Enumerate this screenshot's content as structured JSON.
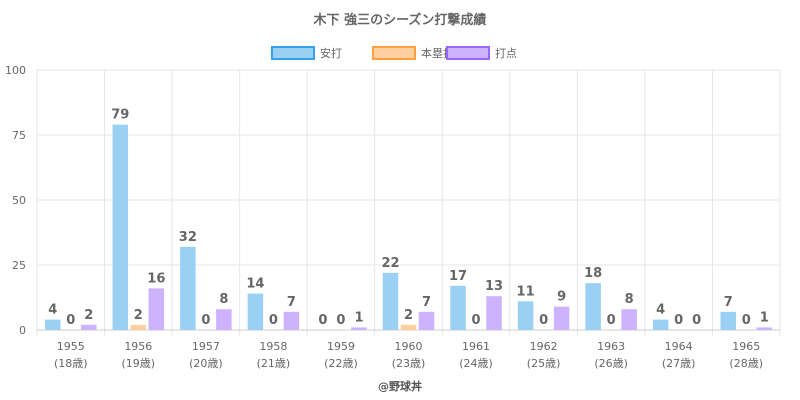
{
  "chart_data": {
    "type": "bar",
    "title": "木下 強三のシーズン打撃成績",
    "categories": [
      "1955",
      "1956",
      "1957",
      "1958",
      "1959",
      "1960",
      "1961",
      "1962",
      "1963",
      "1964",
      "1965"
    ],
    "sublabels": [
      "(18歳)",
      "(19歳)",
      "(20歳)",
      "(21歳)",
      "(22歳)",
      "(23歳)",
      "(24歳)",
      "(25歳)",
      "(26歳)",
      "(27歳)",
      "(28歳)"
    ],
    "series": [
      {
        "name": "安打",
        "values": [
          4,
          79,
          32,
          14,
          0,
          22,
          17,
          11,
          18,
          4,
          7
        ],
        "fill": "#9bd0f5",
        "stroke": "#36a2eb"
      },
      {
        "name": "本塁打",
        "values": [
          0,
          2,
          0,
          0,
          0,
          2,
          0,
          0,
          0,
          0,
          0
        ],
        "fill": "#ffcf9f",
        "stroke": "#ff9f40"
      },
      {
        "name": "打点",
        "values": [
          2,
          16,
          8,
          7,
          1,
          7,
          13,
          9,
          8,
          0,
          1
        ],
        "fill": "#ccb2ff",
        "stroke": "#9966ff"
      }
    ],
    "ylim": [
      0,
      100
    ],
    "yticks": [
      0,
      25,
      50,
      75,
      100
    ],
    "grid": true,
    "legend": "top"
  },
  "footer": "@野球丼"
}
